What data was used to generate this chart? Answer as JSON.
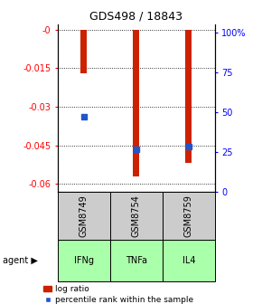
{
  "title": "GDS498 / 18843",
  "samples": [
    "GSM8749",
    "GSM8754",
    "GSM8759"
  ],
  "agents": [
    "IFNg",
    "TNFa",
    "IL4"
  ],
  "log_ratios": [
    -0.017,
    -0.057,
    -0.052
  ],
  "percentile_ranks_pct": [
    45,
    25,
    27
  ],
  "ylim_left": [
    -0.063,
    0.002
  ],
  "yticks_left": [
    0,
    -0.015,
    -0.03,
    -0.045,
    -0.06
  ],
  "ytick_labels_left": [
    "-0",
    "-0.015",
    "-0.03",
    "-0.045",
    "-0.06"
  ],
  "ylim_right": [
    0,
    105
  ],
  "yticks_right": [
    0,
    25,
    50,
    75,
    100
  ],
  "ytick_labels_right": [
    "0",
    "25",
    "50",
    "75",
    "100%"
  ],
  "bar_color": "#cc2200",
  "dot_color": "#2255cc",
  "bar_width": 0.12,
  "agent_bg_color": "#aaffaa",
  "sample_bg_color": "#cccccc",
  "legend_items": [
    "log ratio",
    "percentile rank within the sample"
  ],
  "dot_size": 5
}
